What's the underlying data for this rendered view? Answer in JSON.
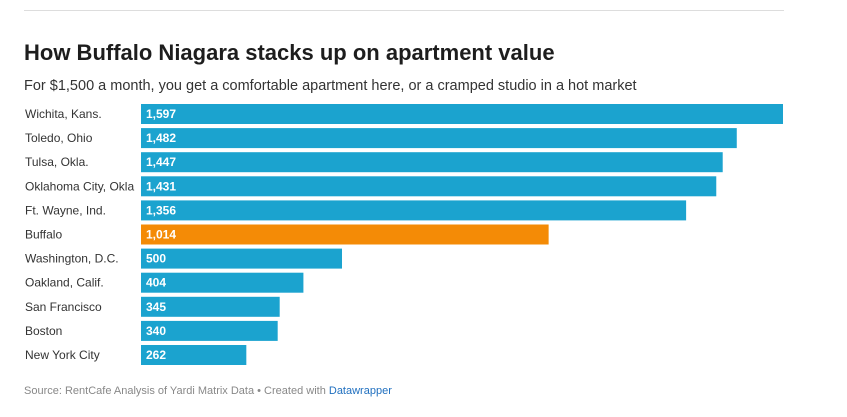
{
  "title": "How Buffalo Niagara stacks up on apartment value",
  "subtitle": "For $1,500 a month, you get a comfortable apartment here, or a cramped studio in a hot market",
  "footer": {
    "source": "Source: RentCafe Analysis of Yardi Matrix Data",
    "separator": " • Created with ",
    "link_text": "Datawrapper"
  },
  "colors": {
    "default_bar": "#1ba3cf",
    "highlight_bar": "#f48b06",
    "value_label": "#ffffff"
  },
  "chart_data": {
    "type": "bar",
    "orientation": "horizontal",
    "categories": [
      "Wichita, Kans.",
      "Toledo, Ohio",
      "Tulsa, Okla.",
      "Oklahoma City, Okla",
      "Ft. Wayne, Ind.",
      "Buffalo",
      "Washington, D.C.",
      "Oakland, Calif.",
      "San Francisco",
      "Boston",
      "New York City"
    ],
    "values": [
      1597,
      1482,
      1447,
      1431,
      1356,
      1014,
      500,
      404,
      345,
      340,
      262
    ],
    "value_labels": [
      "1,597",
      "1,482",
      "1,447",
      "1,431",
      "1,356",
      "1,014",
      "500",
      "404",
      "345",
      "340",
      "262"
    ],
    "highlight": "Buffalo",
    "xlim": [
      0,
      1597
    ],
    "grid": false,
    "legend": "none"
  }
}
